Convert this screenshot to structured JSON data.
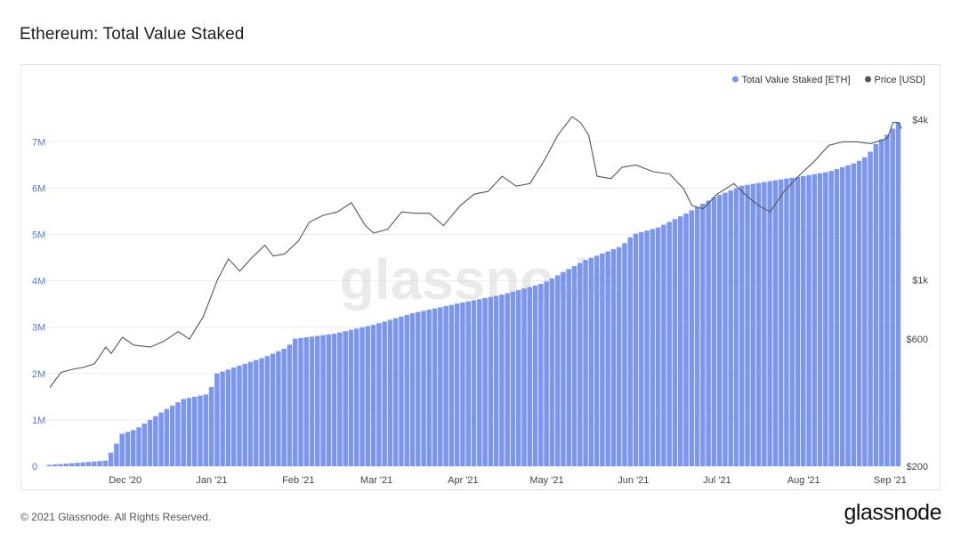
{
  "page": {
    "title": "Ethereum: Total Value Staked",
    "copyright": "© 2021 Glassnode. All Rights Reserved.",
    "logo": "glassnode",
    "watermark": "glassnode"
  },
  "colors": {
    "bars": "#7b96ea",
    "price_line": "#555555",
    "left_axis": "#5b78d6",
    "right_axis": "#444444",
    "grid": "#ececec"
  },
  "chart_data": {
    "type": "bar",
    "title": "Ethereum: Total Value Staked",
    "legend_placement": "top-right",
    "grid": true,
    "series": [
      {
        "name": "Total Value Staked [ETH]",
        "type": "bar",
        "axis": "left",
        "date_range": [
          "2020-11-04",
          "2021-09-05"
        ],
        "keypoints": [
          [
            "2020-11-04",
            30000
          ],
          [
            "2020-11-24",
            120000
          ],
          [
            "2020-11-27",
            380000
          ],
          [
            "2020-11-30",
            700000
          ],
          [
            "2020-12-05",
            800000
          ],
          [
            "2020-12-10",
            1000000
          ],
          [
            "2020-12-15",
            1200000
          ],
          [
            "2020-12-22",
            1450000
          ],
          [
            "2020-12-31",
            1560000
          ],
          [
            "2021-01-03",
            2000000
          ],
          [
            "2021-01-10",
            2150000
          ],
          [
            "2021-01-20",
            2350000
          ],
          [
            "2021-01-28",
            2560000
          ],
          [
            "2021-01-31",
            2750000
          ],
          [
            "2021-02-14",
            2860000
          ],
          [
            "2021-02-28",
            3050000
          ],
          [
            "2021-03-14",
            3300000
          ],
          [
            "2021-03-31",
            3520000
          ],
          [
            "2021-04-15",
            3700000
          ],
          [
            "2021-04-30",
            3950000
          ],
          [
            "2021-05-03",
            4050000
          ],
          [
            "2021-05-15",
            4450000
          ],
          [
            "2021-05-28",
            4750000
          ],
          [
            "2021-06-01",
            5000000
          ],
          [
            "2021-06-10",
            5150000
          ],
          [
            "2021-06-20",
            5450000
          ],
          [
            "2021-06-30",
            5800000
          ],
          [
            "2021-07-10",
            6050000
          ],
          [
            "2021-07-20",
            6150000
          ],
          [
            "2021-07-31",
            6250000
          ],
          [
            "2021-08-10",
            6350000
          ],
          [
            "2021-08-20",
            6550000
          ],
          [
            "2021-08-24",
            6700000
          ],
          [
            "2021-08-27",
            6950000
          ],
          [
            "2021-08-31",
            7150000
          ],
          [
            "2021-09-05",
            7480000
          ]
        ]
      },
      {
        "name": "Price [USD]",
        "type": "line",
        "axis": "right",
        "keypoints": [
          [
            "2020-11-04",
            395
          ],
          [
            "2020-11-08",
            450
          ],
          [
            "2020-11-12",
            462
          ],
          [
            "2020-11-16",
            470
          ],
          [
            "2020-11-20",
            485
          ],
          [
            "2020-11-24",
            560
          ],
          [
            "2020-11-26",
            530
          ],
          [
            "2020-11-30",
            610
          ],
          [
            "2020-12-04",
            570
          ],
          [
            "2020-12-10",
            560
          ],
          [
            "2020-12-15",
            590
          ],
          [
            "2020-12-20",
            640
          ],
          [
            "2020-12-24",
            600
          ],
          [
            "2020-12-29",
            730
          ],
          [
            "2021-01-03",
            1000
          ],
          [
            "2021-01-07",
            1200
          ],
          [
            "2021-01-11",
            1080
          ],
          [
            "2021-01-15",
            1200
          ],
          [
            "2021-01-20",
            1350
          ],
          [
            "2021-01-23",
            1230
          ],
          [
            "2021-01-27",
            1250
          ],
          [
            "2021-02-01",
            1400
          ],
          [
            "2021-02-05",
            1650
          ],
          [
            "2021-02-10",
            1750
          ],
          [
            "2021-02-15",
            1800
          ],
          [
            "2021-02-20",
            1950
          ],
          [
            "2021-02-25",
            1600
          ],
          [
            "2021-02-28",
            1500
          ],
          [
            "2021-03-05",
            1550
          ],
          [
            "2021-03-10",
            1800
          ],
          [
            "2021-03-15",
            1780
          ],
          [
            "2021-03-20",
            1780
          ],
          [
            "2021-03-25",
            1600
          ],
          [
            "2021-03-31",
            1900
          ],
          [
            "2021-04-05",
            2100
          ],
          [
            "2021-04-10",
            2150
          ],
          [
            "2021-04-15",
            2450
          ],
          [
            "2021-04-20",
            2250
          ],
          [
            "2021-04-25",
            2300
          ],
          [
            "2021-04-30",
            2800
          ],
          [
            "2021-05-05",
            3500
          ],
          [
            "2021-05-10",
            4100
          ],
          [
            "2021-05-13",
            3900
          ],
          [
            "2021-05-16",
            3500
          ],
          [
            "2021-05-19",
            2450
          ],
          [
            "2021-05-24",
            2400
          ],
          [
            "2021-05-28",
            2650
          ],
          [
            "2021-06-02",
            2700
          ],
          [
            "2021-06-08",
            2550
          ],
          [
            "2021-06-14",
            2500
          ],
          [
            "2021-06-19",
            2200
          ],
          [
            "2021-06-22",
            1900
          ],
          [
            "2021-06-26",
            1850
          ],
          [
            "2021-07-01",
            2100
          ],
          [
            "2021-07-07",
            2300
          ],
          [
            "2021-07-12",
            2050
          ],
          [
            "2021-07-16",
            1900
          ],
          [
            "2021-07-20",
            1800
          ],
          [
            "2021-07-25",
            2150
          ],
          [
            "2021-07-31",
            2500
          ],
          [
            "2021-08-05",
            2800
          ],
          [
            "2021-08-10",
            3200
          ],
          [
            "2021-08-15",
            3300
          ],
          [
            "2021-08-20",
            3300
          ],
          [
            "2021-08-25",
            3250
          ],
          [
            "2021-08-31",
            3400
          ],
          [
            "2021-09-02",
            3900
          ],
          [
            "2021-09-04",
            3900
          ],
          [
            "2021-09-05",
            3700
          ]
        ]
      }
    ],
    "x_ticks": [
      "Dec '20",
      "Jan '21",
      "Feb '21",
      "Mar '21",
      "Apr '21",
      "May '21",
      "Jun '21",
      "Jul '21",
      "Aug '21",
      "Sep '21"
    ],
    "x_tick_dates": [
      "2020-12-01",
      "2021-01-01",
      "2021-02-01",
      "2021-03-01",
      "2021-04-01",
      "2021-05-01",
      "2021-06-01",
      "2021-07-01",
      "2021-08-01",
      "2021-09-01"
    ],
    "y_left": {
      "scale": "linear",
      "range": [
        0,
        7600000
      ],
      "ticks": [
        0,
        1000000,
        2000000,
        3000000,
        4000000,
        5000000,
        6000000,
        7000000
      ],
      "tick_labels": [
        "0",
        "1M",
        "2M",
        "3M",
        "4M",
        "5M",
        "6M",
        "7M"
      ]
    },
    "y_right": {
      "scale": "log",
      "range": [
        200,
        4200
      ],
      "ticks": [
        200,
        600,
        1000,
        4000
      ],
      "tick_labels": [
        "$200",
        "$600",
        "$1k",
        "$4k"
      ]
    }
  }
}
